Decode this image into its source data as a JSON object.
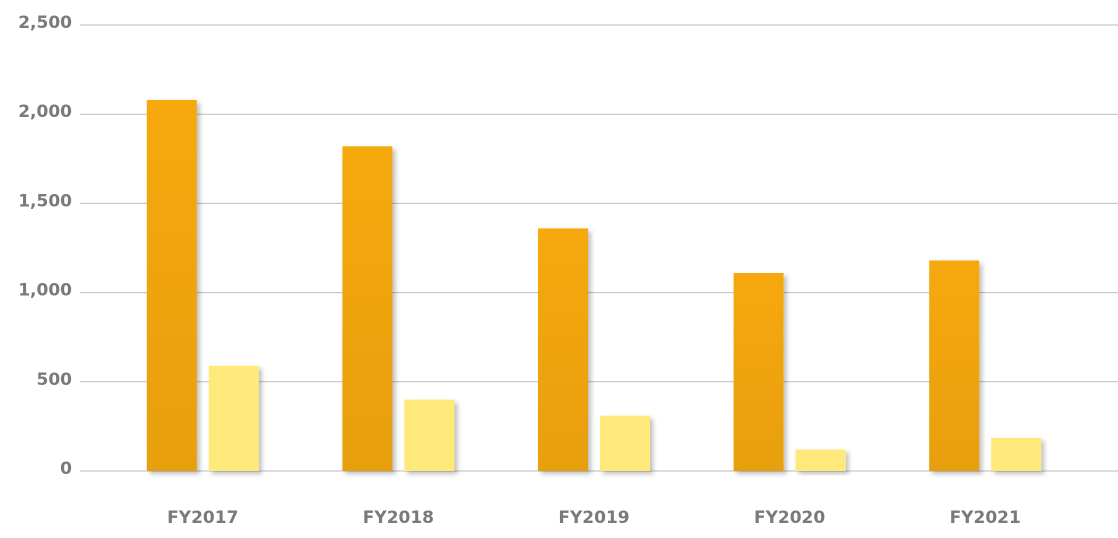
{
  "chart_data": {
    "type": "bar",
    "categories": [
      "FY2017",
      "FY2018",
      "FY2019",
      "FY2020",
      "FY2021"
    ],
    "series": [
      {
        "color": "#f6a90a",
        "values": [
          2080,
          1820,
          1360,
          1110,
          1180
        ]
      },
      {
        "color": "#fee97a",
        "values": [
          590,
          400,
          310,
          120,
          185
        ]
      }
    ],
    "ylim": [
      0,
      2500
    ],
    "yticks": [
      0,
      500,
      {
        "value": 1000,
        "label": "1,000"
      },
      {
        "value": 1500,
        "label": "1,500"
      },
      {
        "value": 2000,
        "label": "2,000"
      },
      {
        "value": 2500,
        "label": "2,500"
      }
    ],
    "grid": true
  }
}
